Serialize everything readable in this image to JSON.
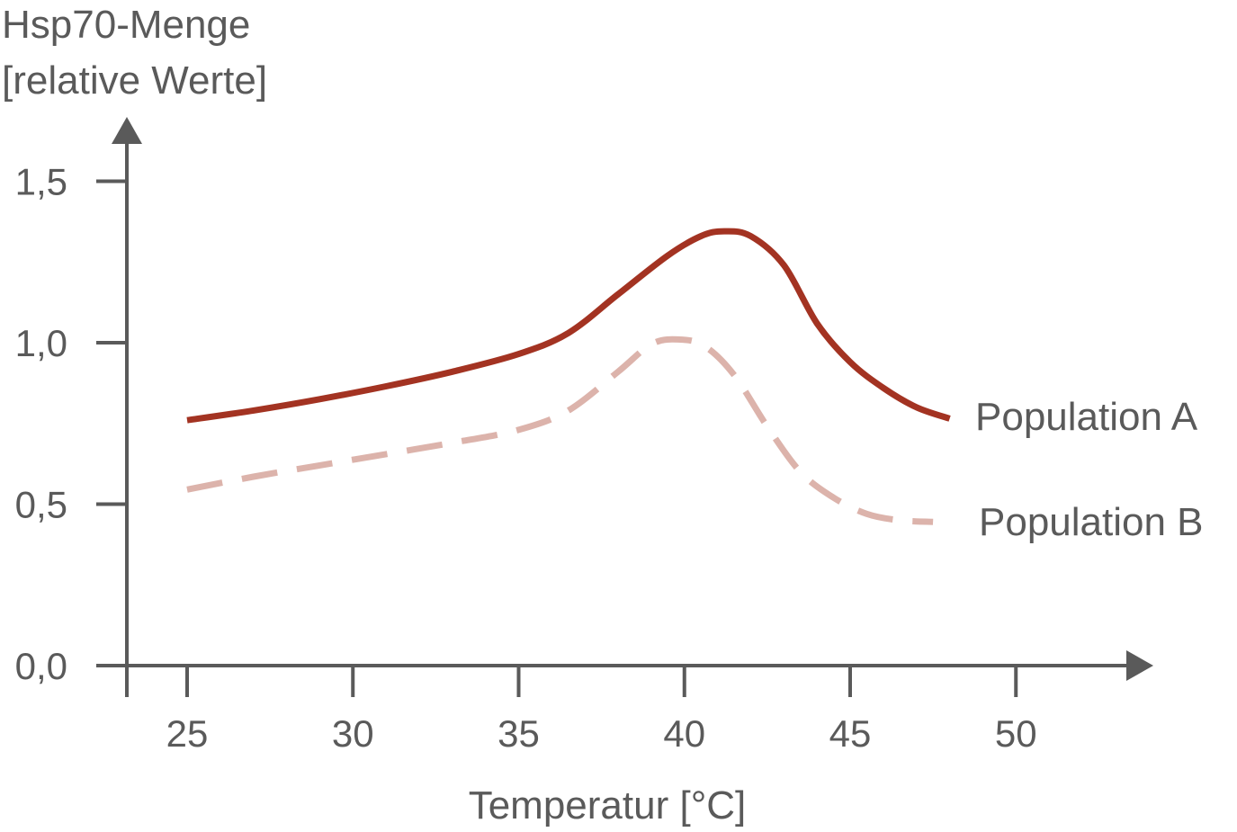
{
  "chart_data": {
    "type": "line",
    "title": "",
    "ylabel_lines": [
      "Hsp70-Menge",
      "[relative Werte]"
    ],
    "xlabel": "Temperatur [°C]",
    "xlim": [
      23.2,
      50
    ],
    "ylim": [
      0,
      1.5
    ],
    "xticks": [
      25,
      30,
      35,
      40,
      45,
      50
    ],
    "xtick_labels": [
      "25",
      "30",
      "35",
      "40",
      "45",
      "50"
    ],
    "yticks": [
      0,
      0.5,
      1.0,
      1.5
    ],
    "ytick_labels": [
      "0,0",
      "0,5",
      "1,0",
      "1,5"
    ],
    "grid": false,
    "legend": "labels at line ends",
    "series": [
      {
        "name": "Population A",
        "color": "#a33322",
        "style": "solid",
        "points": [
          [
            25,
            0.76
          ],
          [
            27,
            0.79
          ],
          [
            29,
            0.825
          ],
          [
            31,
            0.865
          ],
          [
            33,
            0.91
          ],
          [
            35,
            0.965
          ],
          [
            36.5,
            1.03
          ],
          [
            38,
            1.15
          ],
          [
            39.5,
            1.27
          ],
          [
            40.5,
            1.33
          ],
          [
            41.2,
            1.345
          ],
          [
            42,
            1.33
          ],
          [
            43,
            1.24
          ],
          [
            44,
            1.06
          ],
          [
            45,
            0.94
          ],
          [
            46,
            0.86
          ],
          [
            47,
            0.8
          ],
          [
            48,
            0.765
          ]
        ]
      },
      {
        "name": "Population B",
        "color": "#dcb3ab",
        "style": "dashed",
        "points": [
          [
            25,
            0.545
          ],
          [
            27,
            0.585
          ],
          [
            29,
            0.62
          ],
          [
            31,
            0.655
          ],
          [
            33,
            0.69
          ],
          [
            35,
            0.73
          ],
          [
            36.5,
            0.79
          ],
          [
            38,
            0.91
          ],
          [
            39,
            0.995
          ],
          [
            39.8,
            1.01
          ],
          [
            40.6,
            0.99
          ],
          [
            41.5,
            0.9
          ],
          [
            42.5,
            0.74
          ],
          [
            43.5,
            0.6
          ],
          [
            44.5,
            0.52
          ],
          [
            45.5,
            0.47
          ],
          [
            46.5,
            0.45
          ],
          [
            47.5,
            0.445
          ]
        ]
      }
    ]
  }
}
